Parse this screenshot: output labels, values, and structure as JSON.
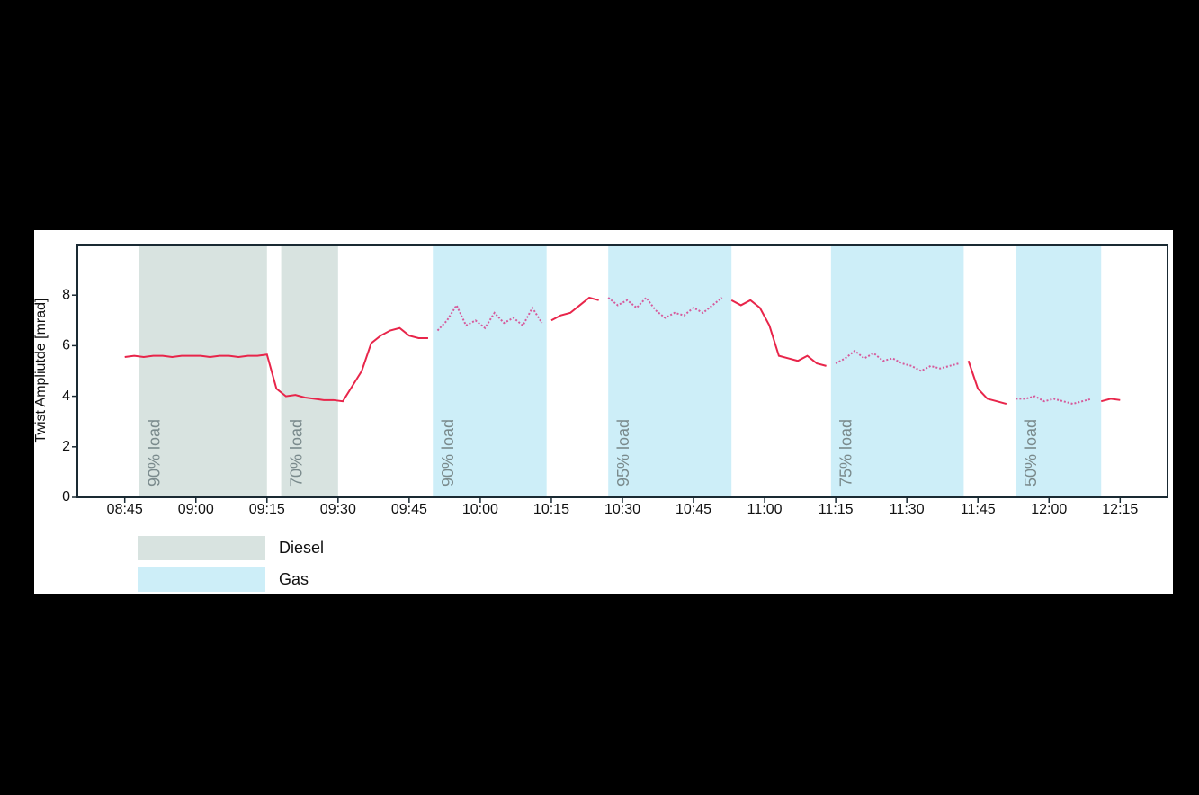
{
  "chart_data": {
    "type": "line",
    "ylabel": "Twist Ampliutde [mrad]",
    "xlim": [
      "08:35",
      "12:25"
    ],
    "xticks": [
      "08:45",
      "09:00",
      "09:15",
      "09:30",
      "09:45",
      "10:00",
      "10:15",
      "10:30",
      "10:45",
      "11:00",
      "11:15",
      "11:30",
      "11:45",
      "12:00",
      "12:15"
    ],
    "ylim": [
      0,
      10
    ],
    "yticks": [
      0,
      2,
      4,
      6,
      8
    ],
    "shaded": [
      {
        "name": "Diesel",
        "color": "#d8e3e0",
        "spans": [
          {
            "start": "08:48",
            "end": "09:15",
            "label": "90% load"
          },
          {
            "start": "09:18",
            "end": "09:30",
            "label": "70% load"
          }
        ]
      },
      {
        "name": "Gas",
        "color": "#cdeef8",
        "line_color": "#d65a9b",
        "spans": [
          {
            "start": "09:50",
            "end": "10:14",
            "label": "90% load"
          },
          {
            "start": "10:27",
            "end": "10:53",
            "label": "95% load"
          },
          {
            "start": "11:14",
            "end": "11:42",
            "label": "75% load"
          },
          {
            "start": "11:53",
            "end": "12:11",
            "label": "50% load"
          }
        ]
      }
    ],
    "series": [
      {
        "color": "#e8254a",
        "x": [
          "08:45",
          "08:47",
          "08:49",
          "08:51",
          "08:53",
          "08:55",
          "08:57",
          "08:59",
          "09:01",
          "09:03",
          "09:05",
          "09:07",
          "09:09",
          "09:11",
          "09:13",
          "09:15",
          "09:17",
          "09:19",
          "09:21",
          "09:23",
          "09:25",
          "09:27",
          "09:29",
          "09:31",
          "09:33",
          "09:35",
          "09:37",
          "09:39",
          "09:41",
          "09:43",
          "09:45",
          "09:47",
          "09:49",
          "09:51",
          "09:53",
          "09:55",
          "09:57",
          "09:59",
          "10:01",
          "10:03",
          "10:05",
          "10:07",
          "10:09",
          "10:11",
          "10:13",
          "10:15",
          "10:17",
          "10:19",
          "10:21",
          "10:23",
          "10:25",
          "10:27",
          "10:29",
          "10:31",
          "10:33",
          "10:35",
          "10:37",
          "10:39",
          "10:41",
          "10:43",
          "10:45",
          "10:47",
          "10:49",
          "10:51",
          "10:53",
          "10:55",
          "10:57",
          "10:59",
          "11:01",
          "11:03",
          "11:05",
          "11:07",
          "11:09",
          "11:11",
          "11:13",
          "11:15",
          "11:17",
          "11:19",
          "11:21",
          "11:23",
          "11:25",
          "11:27",
          "11:29",
          "11:31",
          "11:33",
          "11:35",
          "11:37",
          "11:39",
          "11:41",
          "11:43",
          "11:45",
          "11:47",
          "11:49",
          "11:51",
          "11:53",
          "11:55",
          "11:57",
          "11:59",
          "12:01",
          "12:03",
          "12:05",
          "12:07",
          "12:09",
          "12:11",
          "12:13",
          "12:15"
        ],
        "values": [
          5.55,
          5.6,
          5.55,
          5.6,
          5.6,
          5.55,
          5.6,
          5.6,
          5.6,
          5.55,
          5.6,
          5.6,
          5.55,
          5.6,
          5.6,
          5.65,
          4.3,
          4.0,
          4.05,
          3.95,
          3.9,
          3.85,
          3.85,
          3.8,
          4.4,
          5.0,
          6.1,
          6.4,
          6.6,
          6.7,
          6.4,
          6.3,
          6.3,
          6.6,
          7.0,
          7.6,
          6.8,
          7.0,
          6.7,
          7.3,
          6.9,
          7.1,
          6.8,
          7.5,
          6.9,
          7.0,
          7.2,
          7.3,
          7.6,
          7.9,
          7.8,
          7.9,
          7.6,
          7.8,
          7.5,
          7.9,
          7.4,
          7.1,
          7.3,
          7.2,
          7.5,
          7.3,
          7.6,
          7.9,
          7.8,
          7.6,
          7.8,
          7.5,
          6.8,
          5.6,
          5.5,
          5.4,
          5.6,
          5.3,
          5.2,
          5.3,
          5.5,
          5.8,
          5.5,
          5.7,
          5.4,
          5.5,
          5.3,
          5.2,
          5.0,
          5.2,
          5.1,
          5.2,
          5.3,
          5.4,
          4.3,
          3.9,
          3.8,
          3.7,
          3.9,
          3.9,
          4.0,
          3.8,
          3.9,
          3.8,
          3.7,
          3.8,
          3.9,
          3.8,
          3.9,
          3.85
        ]
      }
    ]
  }
}
